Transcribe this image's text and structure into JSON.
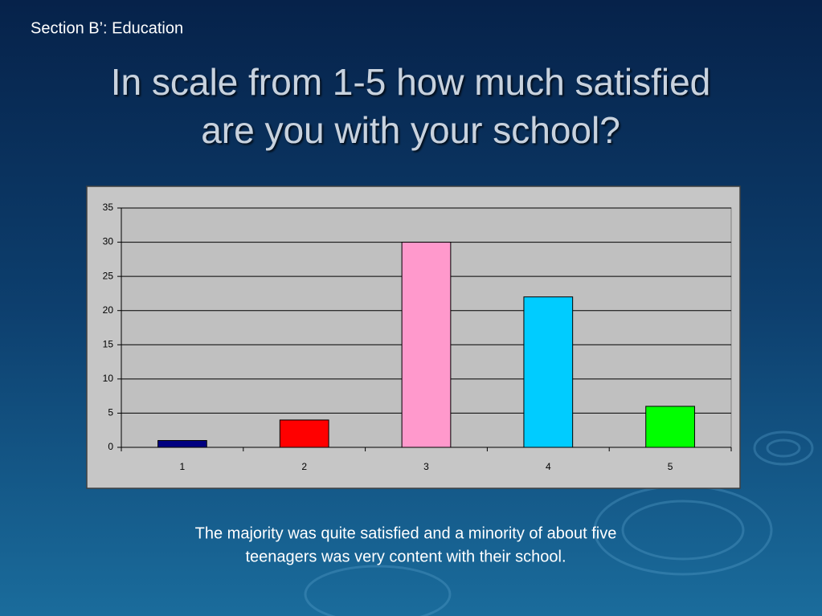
{
  "section": "Section B’: Education",
  "title": [
    "In scale from 1-5 how much satisfied",
    "are you with your school?"
  ],
  "caption": [
    "The majority was quite satisfied and a minority of about five",
    "teenagers was very content with their school."
  ],
  "chart_data": {
    "type": "bar",
    "categories": [
      "1",
      "2",
      "3",
      "4",
      "5"
    ],
    "values": [
      1,
      4,
      30,
      22,
      6
    ],
    "colors": [
      "#000080",
      "#ff0000",
      "#ff99cc",
      "#00ccff",
      "#00ff00"
    ],
    "ylim": [
      0,
      35
    ],
    "yticks": [
      0,
      5,
      10,
      15,
      20,
      25,
      30,
      35
    ],
    "grid": true
  }
}
